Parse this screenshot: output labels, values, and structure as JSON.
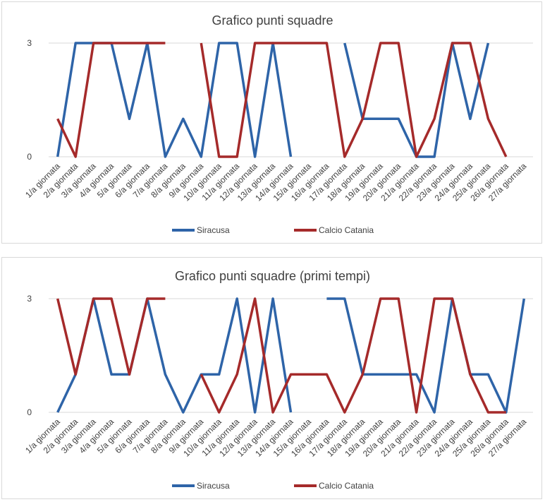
{
  "chart_data": [
    {
      "type": "line",
      "title": "Grafico punti squadre",
      "xlabel": "",
      "ylabel": "",
      "ylim": [
        0,
        3
      ],
      "yticks": [
        0,
        3
      ],
      "grid": true,
      "legend": "bottom",
      "categories": [
        "1/a giornata",
        "2/a giornata",
        "3/a giornata",
        "4/a giornata",
        "5/a giornata",
        "6/a giornata",
        "7/a giornata",
        "8/a giornata",
        "9/a giornata",
        "10/a giornata",
        "11/a giornata",
        "12/a giornata",
        "13/a giornata",
        "14/a giornata",
        "15/a giornata",
        "16/a giornata",
        "17/a giornata",
        "18/a giornata",
        "19/a giornata",
        "20/a giornata",
        "21/a giornata",
        "22/a giornata",
        "23/a giornata",
        "24/a giornata",
        "25/a giornata",
        "26/a giornata",
        "27/a giornata"
      ],
      "series": [
        {
          "name": "Siracusa",
          "color": "#2e64a8",
          "values": [
            0,
            3,
            3,
            3,
            1,
            3,
            0,
            1,
            0,
            3,
            3,
            0,
            3,
            0,
            null,
            null,
            3,
            1,
            1,
            1,
            0,
            0,
            3,
            1,
            3,
            null,
            null
          ]
        },
        {
          "name": "Calcio Catania",
          "color": "#a52a2a",
          "values": [
            1,
            0,
            3,
            3,
            3,
            3,
            3,
            null,
            3,
            0,
            0,
            3,
            3,
            3,
            3,
            3,
            0,
            1,
            3,
            3,
            0,
            1,
            3,
            3,
            1,
            0,
            null
          ]
        }
      ]
    },
    {
      "type": "line",
      "title": "Grafico punti squadre (primi tempi)",
      "xlabel": "",
      "ylabel": "",
      "ylim": [
        0,
        3
      ],
      "yticks": [
        0,
        3
      ],
      "grid": true,
      "legend": "bottom",
      "categories": [
        "1/a giornata",
        "2/a giornata",
        "3/a giornata",
        "4/a giornata",
        "5/a giornata",
        "6/a giornata",
        "7/a giornata",
        "8/a giornata",
        "9/a giornata",
        "10/a giornata",
        "11/a giornata",
        "12/a giornata",
        "13/a giornata",
        "14/a giornata",
        "15/a giornata",
        "16/a giornata",
        "17/a giornata",
        "18/a giornata",
        "19/a giornata",
        "20/a giornata",
        "21/a giornata",
        "22/a giornata",
        "23/a giornata",
        "24/a giornata",
        "25/a giornata",
        "26/a giornata",
        "27/a giornata"
      ],
      "series": [
        {
          "name": "Siracusa",
          "color": "#2e64a8",
          "values": [
            0,
            1,
            3,
            1,
            1,
            3,
            1,
            0,
            1,
            1,
            3,
            0,
            3,
            0,
            null,
            3,
            3,
            1,
            1,
            1,
            1,
            0,
            3,
            1,
            1,
            0,
            3
          ]
        },
        {
          "name": "Calcio Catania",
          "color": "#a52a2a",
          "values": [
            3,
            1,
            3,
            3,
            1,
            3,
            3,
            null,
            1,
            0,
            1,
            3,
            0,
            1,
            1,
            1,
            0,
            1,
            3,
            3,
            0,
            3,
            3,
            1,
            0,
            0,
            null
          ]
        }
      ]
    }
  ]
}
